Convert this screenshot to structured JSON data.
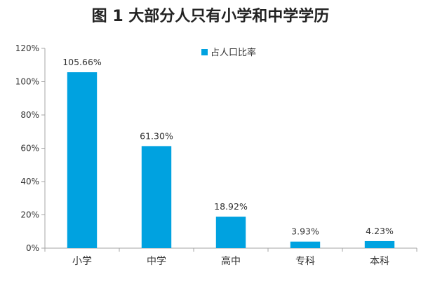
{
  "chart_data": {
    "type": "bar",
    "title": "图 1 大部分人只有小学和中学学历",
    "xlabel": "",
    "ylabel": "",
    "categories": [
      "小学",
      "中学",
      "高中",
      "专科",
      "本科"
    ],
    "series": [
      {
        "name": "占人口比率",
        "values": [
          105.66,
          61.3,
          18.92,
          3.93,
          4.23
        ],
        "data_labels": [
          "105.66%",
          "61.30%",
          "18.92%",
          "3.93%",
          "4.23%"
        ]
      }
    ],
    "ylim": [
      0,
      120
    ],
    "yticks": [
      0,
      20,
      40,
      60,
      80,
      100,
      120
    ],
    "ytick_labels": [
      "0%",
      "20%",
      "40%",
      "60%",
      "80%",
      "100%",
      "120%"
    ],
    "grid": false,
    "legend_position": "top-right",
    "colors": {
      "bar": "#00A2E0",
      "axis": "#A6A6A6"
    }
  }
}
